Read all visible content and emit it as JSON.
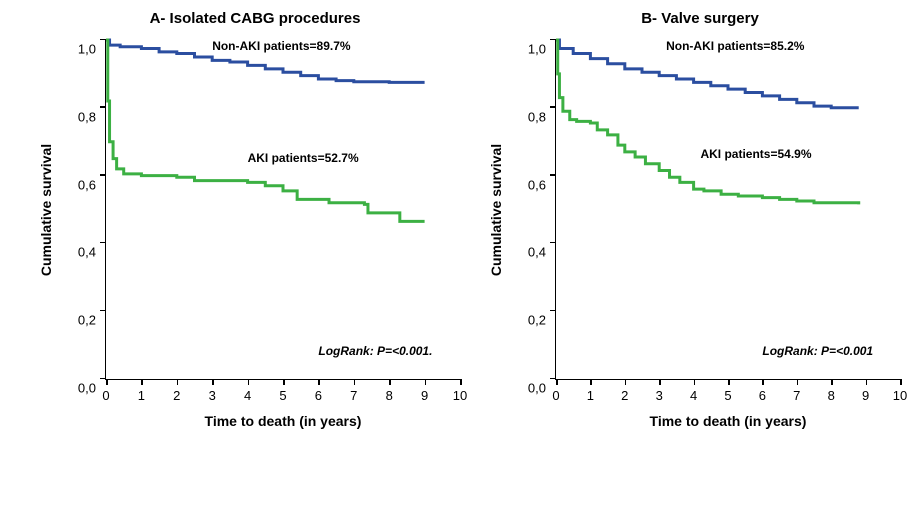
{
  "layout": {
    "figure_width": 922,
    "figure_height": 511,
    "background_color": "#ffffff"
  },
  "panels": [
    {
      "id": "A",
      "title": "A- Isolated CABG procedures",
      "xlabel": "Time to death (in years)",
      "ylabel": "Cumulative survival",
      "xlim": [
        0,
        10
      ],
      "ylim": [
        0.0,
        1.0
      ],
      "xticks": [
        0,
        1,
        2,
        3,
        4,
        5,
        6,
        7,
        8,
        9,
        10
      ],
      "yticks": [
        0.0,
        0.2,
        0.4,
        0.6,
        0.8,
        1.0
      ],
      "ytick_labels": [
        "0,0",
        "0,2",
        "0,4",
        "0,6",
        "0,8",
        "1,0"
      ],
      "axis_color": "#000000",
      "tick_fontsize": 13,
      "label_fontsize": 14,
      "title_fontsize": 15,
      "series": [
        {
          "name": "Non-AKI patients",
          "color": "#2b4ea0",
          "line_width": 3,
          "points": [
            [
              0,
              1.0
            ],
            [
              0.1,
              0.985
            ],
            [
              0.4,
              0.98
            ],
            [
              1,
              0.975
            ],
            [
              1.5,
              0.965
            ],
            [
              2,
              0.96
            ],
            [
              2.5,
              0.95
            ],
            [
              3,
              0.94
            ],
            [
              3.5,
              0.935
            ],
            [
              4,
              0.925
            ],
            [
              4.5,
              0.915
            ],
            [
              5,
              0.905
            ],
            [
              5.5,
              0.895
            ],
            [
              6,
              0.885
            ],
            [
              6.5,
              0.88
            ],
            [
              7,
              0.877
            ],
            [
              8,
              0.875
            ],
            [
              9,
              0.875
            ]
          ]
        },
        {
          "name": "AKI patients",
          "color": "#3cb043",
          "line_width": 3,
          "points": [
            [
              0,
              1.0
            ],
            [
              0.05,
              0.82
            ],
            [
              0.1,
              0.7
            ],
            [
              0.2,
              0.65
            ],
            [
              0.3,
              0.62
            ],
            [
              0.5,
              0.605
            ],
            [
              1,
              0.6
            ],
            [
              2,
              0.595
            ],
            [
              2.5,
              0.585
            ],
            [
              3,
              0.585
            ],
            [
              4,
              0.58
            ],
            [
              4.5,
              0.57
            ],
            [
              5,
              0.555
            ],
            [
              5.3,
              0.555
            ],
            [
              5.4,
              0.53
            ],
            [
              6,
              0.53
            ],
            [
              6.3,
              0.52
            ],
            [
              7.3,
              0.515
            ],
            [
              7.4,
              0.49
            ],
            [
              8,
              0.49
            ],
            [
              8.3,
              0.465
            ],
            [
              9,
              0.465
            ]
          ]
        }
      ],
      "annotations": [
        {
          "text": "Non-AKI patients=89.7%",
          "x": 3,
          "y_abs": 0.98,
          "bold": true,
          "fontsize": 12
        },
        {
          "text": "AKI patients=52.7%",
          "x": 4,
          "y_abs": 0.65,
          "bold": true,
          "fontsize": 12
        },
        {
          "text": "LogRank: P=<0.001.",
          "x": 6,
          "y_abs": 0.08,
          "italic": true,
          "fontsize": 12
        }
      ]
    },
    {
      "id": "B",
      "title": "B- Valve surgery",
      "xlabel": "Time to death (in years)",
      "ylabel": "Cumulative survival",
      "xlim": [
        0,
        10
      ],
      "ylim": [
        0.0,
        1.0
      ],
      "xticks": [
        0,
        1,
        2,
        3,
        4,
        5,
        6,
        7,
        8,
        9,
        10
      ],
      "yticks": [
        0.0,
        0.2,
        0.4,
        0.6,
        0.8,
        1.0
      ],
      "ytick_labels": [
        "0,0",
        "0,2",
        "0,4",
        "0,6",
        "0,8",
        "1,0"
      ],
      "axis_color": "#000000",
      "tick_fontsize": 13,
      "label_fontsize": 14,
      "title_fontsize": 15,
      "series": [
        {
          "name": "Non-AKI patients",
          "color": "#2b4ea0",
          "line_width": 3,
          "points": [
            [
              0,
              1.0
            ],
            [
              0.1,
              0.975
            ],
            [
              0.5,
              0.96
            ],
            [
              1,
              0.945
            ],
            [
              1.5,
              0.93
            ],
            [
              2,
              0.915
            ],
            [
              2.5,
              0.905
            ],
            [
              3,
              0.895
            ],
            [
              3.5,
              0.885
            ],
            [
              4,
              0.875
            ],
            [
              4.5,
              0.865
            ],
            [
              5,
              0.855
            ],
            [
              5.5,
              0.845
            ],
            [
              6,
              0.835
            ],
            [
              6.5,
              0.825
            ],
            [
              7,
              0.815
            ],
            [
              7.5,
              0.805
            ],
            [
              8,
              0.8
            ],
            [
              8.8,
              0.8
            ]
          ]
        },
        {
          "name": "AKI patients",
          "color": "#3cb043",
          "line_width": 3,
          "points": [
            [
              0,
              1.0
            ],
            [
              0.05,
              0.9
            ],
            [
              0.1,
              0.83
            ],
            [
              0.2,
              0.79
            ],
            [
              0.4,
              0.765
            ],
            [
              0.6,
              0.76
            ],
            [
              1,
              0.755
            ],
            [
              1.2,
              0.735
            ],
            [
              1.5,
              0.72
            ],
            [
              1.8,
              0.69
            ],
            [
              2,
              0.67
            ],
            [
              2.3,
              0.655
            ],
            [
              2.6,
              0.635
            ],
            [
              3,
              0.615
            ],
            [
              3.3,
              0.595
            ],
            [
              3.6,
              0.58
            ],
            [
              4,
              0.56
            ],
            [
              4.3,
              0.555
            ],
            [
              4.8,
              0.545
            ],
            [
              5.3,
              0.54
            ],
            [
              6,
              0.535
            ],
            [
              6.5,
              0.53
            ],
            [
              7,
              0.525
            ],
            [
              7.5,
              0.52
            ],
            [
              8.2,
              0.52
            ],
            [
              8.8,
              0.515
            ]
          ]
        }
      ],
      "annotations": [
        {
          "text": "Non-AKI patients=85.2%",
          "x": 3.2,
          "y_abs": 0.98,
          "bold": true,
          "fontsize": 12
        },
        {
          "text": "AKI patients=54.9%",
          "x": 4.2,
          "y_abs": 0.66,
          "bold": true,
          "fontsize": 12
        },
        {
          "text": "LogRank: P=<0.001",
          "x": 6,
          "y_abs": 0.08,
          "italic": true,
          "fontsize": 12
        }
      ]
    }
  ]
}
